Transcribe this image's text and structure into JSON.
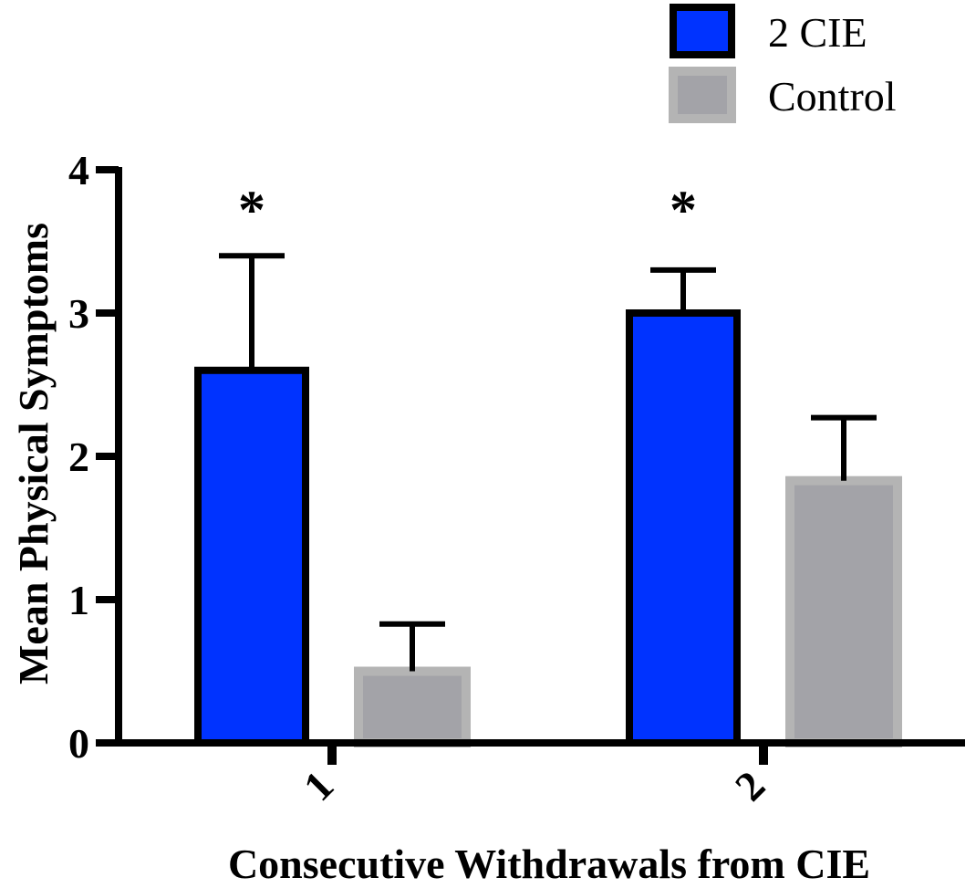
{
  "chart_data": {
    "type": "bar",
    "title": "",
    "xlabel": "Consecutive Withdrawals from CIE",
    "ylabel": "Mean Physical Symptoms",
    "categories": [
      "1",
      "2"
    ],
    "ylim": [
      0,
      4
    ],
    "yticks": [
      "0",
      "1",
      "2",
      "3",
      "4"
    ],
    "legend_position": "top-right",
    "grid": false,
    "series": [
      {
        "name": "2 CIE",
        "fill": "#0033ff",
        "stroke": "#000000",
        "values": [
          2.6,
          3.0
        ],
        "errors": [
          0.8,
          0.3
        ]
      },
      {
        "name": "Control",
        "fill": "#a3a3a8",
        "stroke": "#b4b4b4",
        "values": [
          0.5,
          1.83
        ],
        "errors": [
          0.33,
          0.44
        ]
      }
    ],
    "annotations": [
      {
        "text": "*",
        "category": "1",
        "series": "2 CIE"
      },
      {
        "text": "*",
        "category": "2",
        "series": "2 CIE"
      }
    ]
  }
}
